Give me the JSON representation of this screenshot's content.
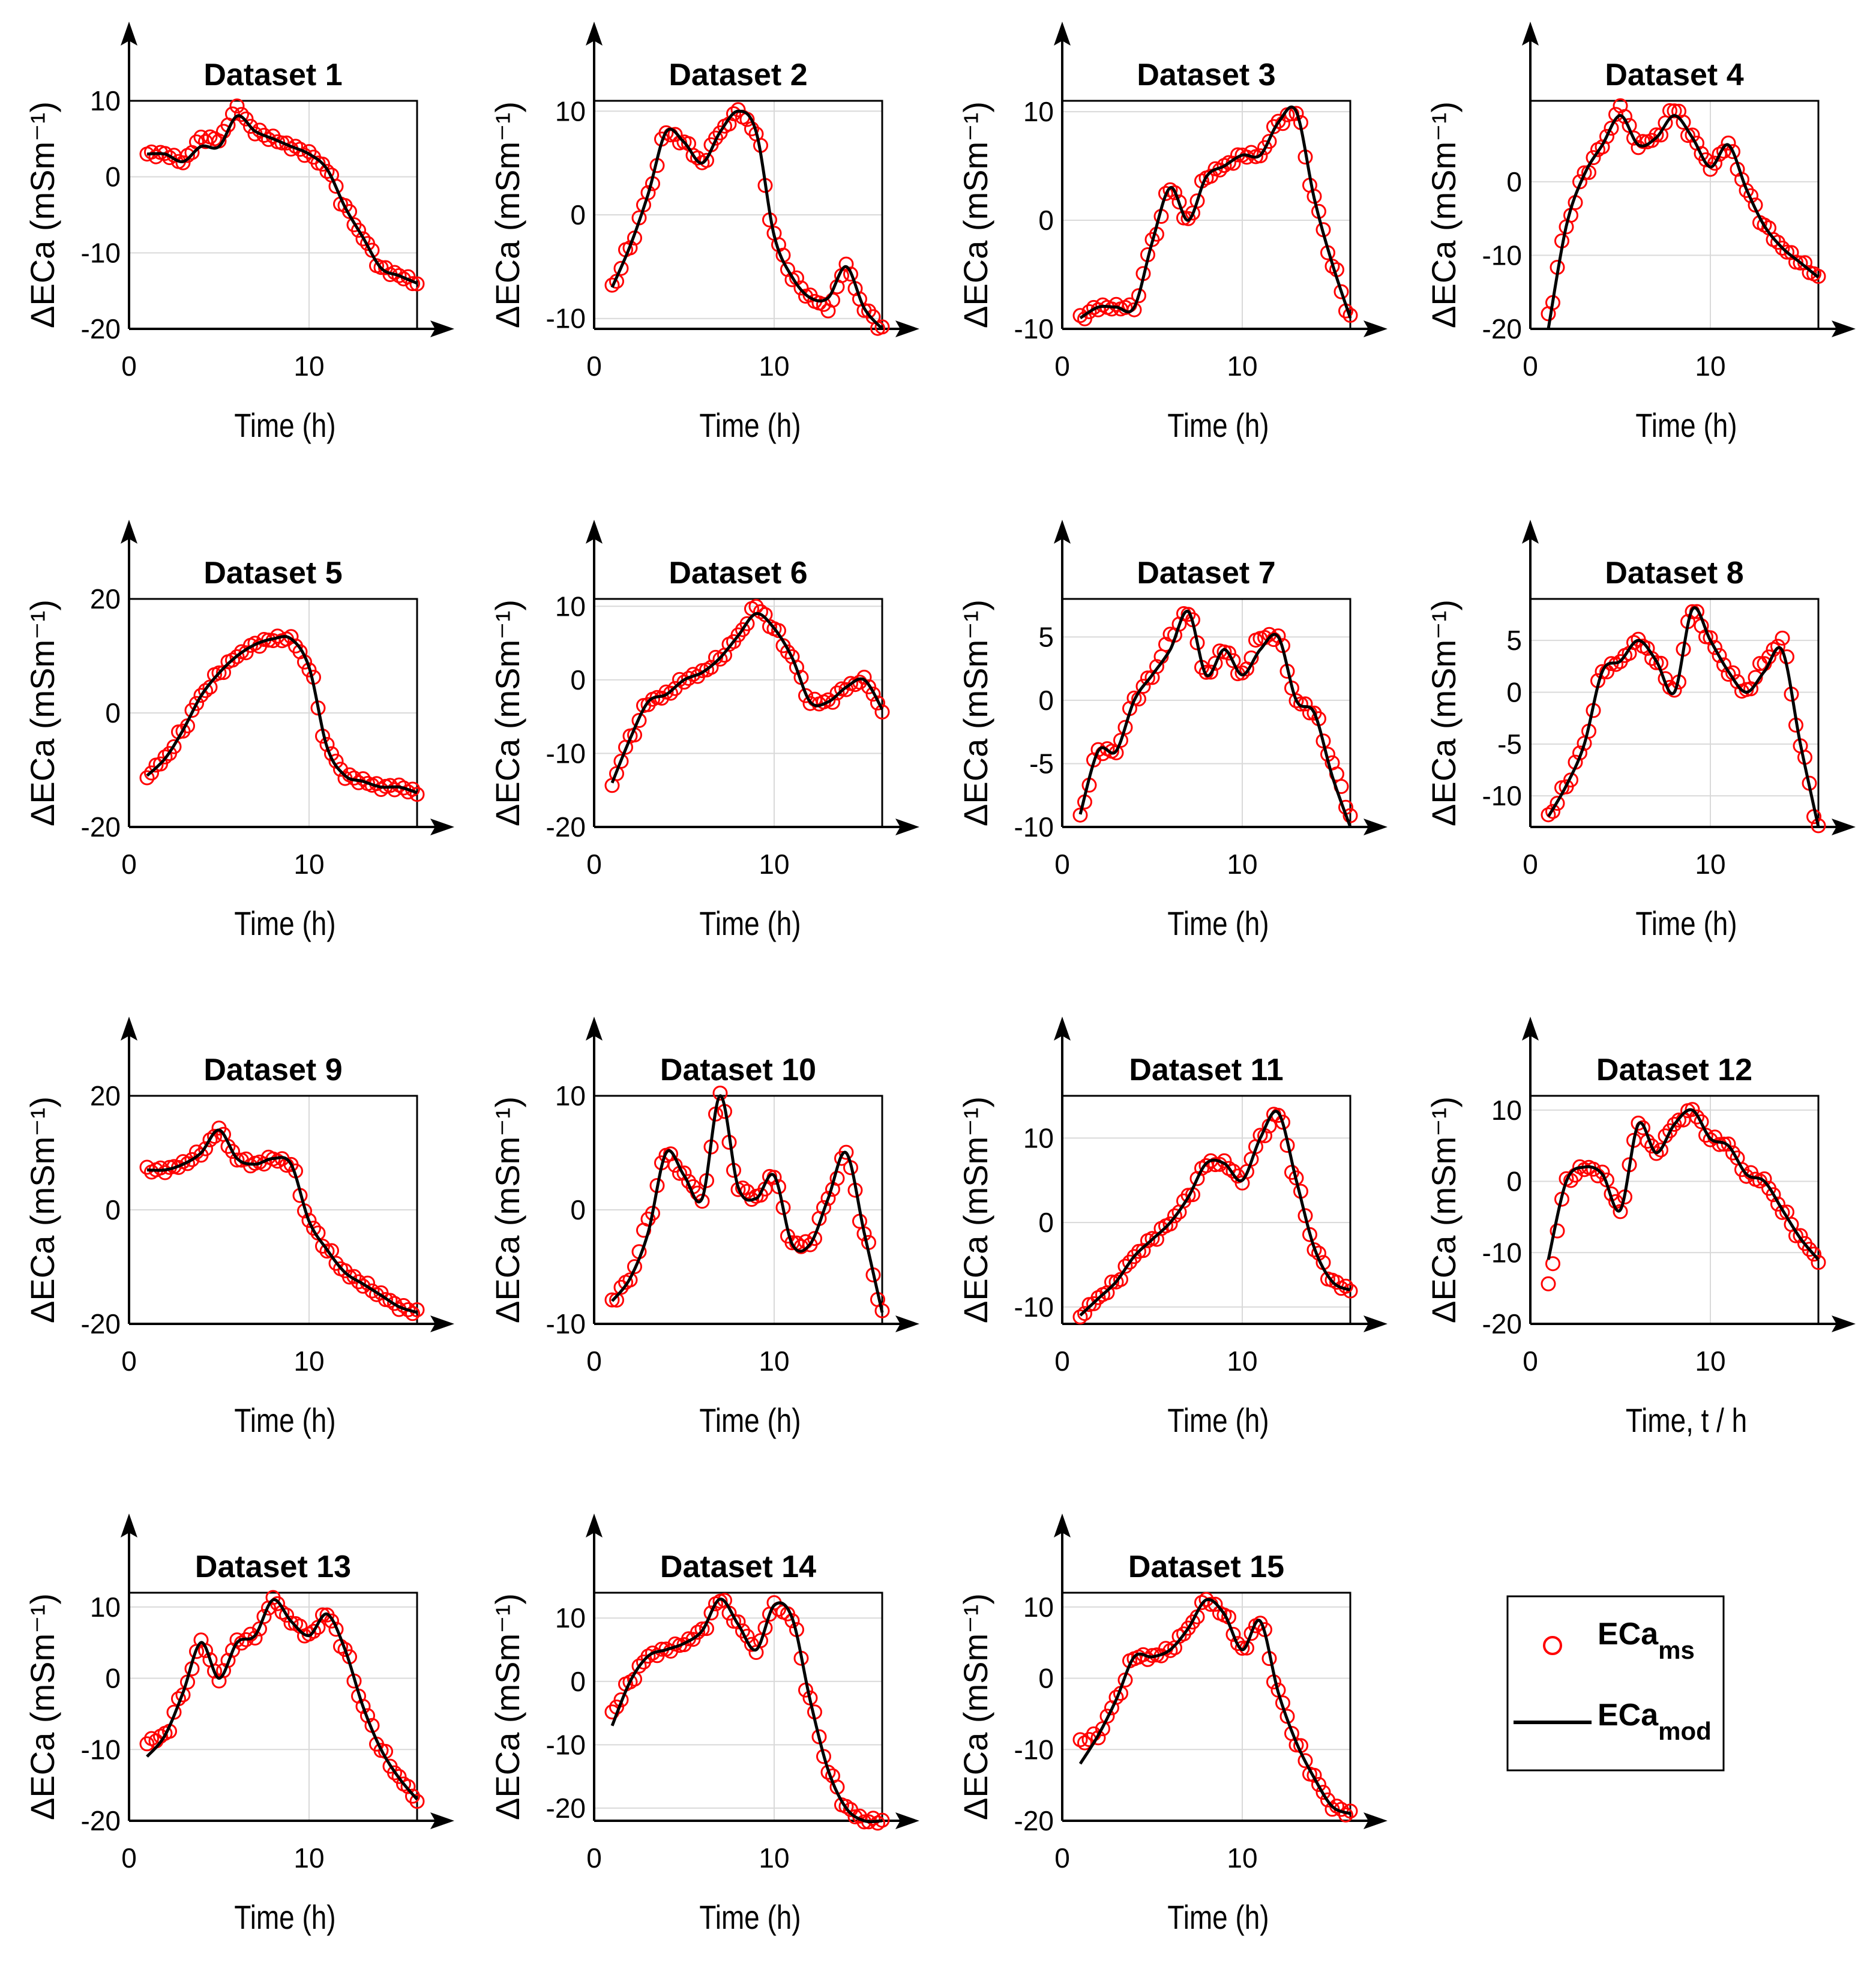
{
  "legend": {
    "measured": {
      "base": "ECa",
      "sub": "ms"
    },
    "modelled": {
      "base": "ECa",
      "sub": "mod"
    }
  },
  "colors": {
    "measured": "#ff0000",
    "modelled": "#000000",
    "grid": "#d9d9d9",
    "axis": "#000000"
  },
  "chart_data": [
    {
      "type": "line",
      "title": "Dataset 1",
      "xlabel": "Time (h)",
      "ylabel": "ΔECa (mSm⁻¹)",
      "xlim": [
        0,
        16
      ],
      "ylim": [
        -20,
        10
      ],
      "xticks": [
        0,
        10
      ],
      "yticks": [
        -20,
        -10,
        0,
        10
      ],
      "x": [
        1,
        2,
        3,
        4,
        5,
        6,
        7,
        8,
        9,
        10,
        11,
        12,
        13,
        14,
        15,
        16
      ],
      "measured": [
        3,
        3,
        2,
        5,
        5,
        9,
        6,
        5,
        4,
        3,
        1,
        -4,
        -8,
        -12,
        -13,
        -14
      ],
      "modelled": [
        3,
        3,
        2,
        4,
        4,
        8,
        6,
        5,
        4,
        3,
        1,
        -4,
        -8,
        -12,
        -13,
        -14
      ]
    },
    {
      "type": "line",
      "title": "Dataset 2",
      "xlabel": "Time (h)",
      "ylabel": "ΔECa (mSm⁻¹)",
      "xlim": [
        0,
        16
      ],
      "ylim": [
        -11,
        11
      ],
      "xticks": [
        0,
        10
      ],
      "yticks": [
        -10,
        0,
        10
      ],
      "x": [
        1,
        2,
        3,
        4,
        5,
        6,
        7,
        8,
        9,
        10,
        11,
        12,
        13,
        14,
        15,
        16
      ],
      "measured": [
        -7,
        -3,
        2,
        8,
        7,
        5,
        8,
        10,
        8,
        -2,
        -6,
        -8,
        -9,
        -5,
        -9,
        -11
      ],
      "modelled": [
        -7,
        -3,
        2,
        8,
        7,
        5,
        8,
        10,
        8,
        -2,
        -6,
        -8,
        -8,
        -5,
        -9,
        -11
      ]
    },
    {
      "type": "line",
      "title": "Dataset 3",
      "xlabel": "Time (h)",
      "ylabel": "ΔECa (mSm⁻¹)",
      "xlim": [
        0,
        16
      ],
      "ylim": [
        -10,
        11
      ],
      "xticks": [
        0,
        10
      ],
      "yticks": [
        -10,
        0,
        10
      ],
      "x": [
        1,
        2,
        3,
        4,
        5,
        6,
        7,
        8,
        9,
        10,
        11,
        12,
        13,
        14,
        15,
        16
      ],
      "measured": [
        -9,
        -8,
        -8,
        -8,
        -2,
        3,
        0,
        4,
        5,
        6,
        6,
        9,
        10,
        2,
        -4,
        -9
      ],
      "modelled": [
        -9,
        -8,
        -8,
        -8,
        -2,
        3,
        0,
        4,
        5,
        6,
        6,
        9,
        10,
        2,
        -4,
        -9
      ]
    },
    {
      "type": "line",
      "title": "Dataset 4",
      "xlabel": "Time (h)",
      "ylabel": "ΔECa (mSm⁻¹)",
      "xlim": [
        0,
        16
      ],
      "ylim": [
        -20,
        11
      ],
      "xticks": [
        0,
        10
      ],
      "yticks": [
        -20,
        -10,
        0
      ],
      "x": [
        1,
        2,
        3,
        4,
        5,
        6,
        7,
        8,
        9,
        10,
        11,
        12,
        13,
        14,
        15,
        16
      ],
      "measured": [
        -18,
        -6,
        1,
        5,
        10,
        5,
        6,
        10,
        6,
        2,
        5,
        -1,
        -6,
        -9,
        -11,
        -13
      ],
      "modelled": [
        -20,
        -6,
        1,
        5,
        9,
        5,
        6,
        9,
        6,
        2,
        5,
        -1,
        -6,
        -9,
        -11,
        -13
      ]
    },
    {
      "type": "line",
      "title": "Dataset 5",
      "xlabel": "Time (h)",
      "ylabel": "ΔECa (mSm⁻¹)",
      "xlim": [
        0,
        16
      ],
      "ylim": [
        -20,
        20
      ],
      "xticks": [
        0,
        10
      ],
      "yticks": [
        -20,
        0,
        20
      ],
      "x": [
        1,
        2,
        3,
        4,
        5,
        6,
        7,
        8,
        9,
        10,
        11,
        12,
        13,
        14,
        15,
        16
      ],
      "measured": [
        -11,
        -8,
        -3,
        3,
        7,
        10,
        12,
        13,
        13,
        8,
        -6,
        -11,
        -12,
        -13,
        -13,
        -14
      ],
      "modelled": [
        -11,
        -8,
        -3,
        3,
        7,
        10,
        12,
        13,
        13,
        8,
        -6,
        -11,
        -12,
        -13,
        -13,
        -14
      ]
    },
    {
      "type": "line",
      "title": "Dataset 6",
      "xlabel": "Time (h)",
      "ylabel": "ΔECa (mSm⁻¹)",
      "xlim": [
        0,
        16
      ],
      "ylim": [
        -20,
        11
      ],
      "xticks": [
        0,
        10
      ],
      "yticks": [
        -20,
        -10,
        0,
        10
      ],
      "x": [
        1,
        2,
        3,
        4,
        5,
        6,
        7,
        8,
        9,
        10,
        11,
        12,
        13,
        14,
        15,
        16
      ],
      "measured": [
        -14,
        -8,
        -3,
        -2,
        0,
        1,
        3,
        6,
        10,
        7,
        3,
        -3,
        -3,
        -1,
        0,
        -4
      ],
      "modelled": [
        -14,
        -8,
        -3,
        -2,
        0,
        1,
        3,
        6,
        9,
        7,
        3,
        -3,
        -3,
        -1,
        0,
        -4
      ]
    },
    {
      "type": "line",
      "title": "Dataset 7",
      "xlabel": "Time (h)",
      "ylabel": "ΔECa (mSm⁻¹)",
      "xlim": [
        0,
        16
      ],
      "ylim": [
        -10,
        8
      ],
      "xticks": [
        0,
        10
      ],
      "yticks": [
        -10,
        -5,
        0,
        5
      ],
      "x": [
        1,
        2,
        3,
        4,
        5,
        6,
        7,
        8,
        9,
        10,
        11,
        12,
        13,
        14,
        15,
        16
      ],
      "measured": [
        -9,
        -4,
        -4,
        0,
        2,
        5,
        7,
        2,
        4,
        2,
        5,
        5,
        0,
        -1,
        -5,
        -9
      ],
      "modelled": [
        -9,
        -4,
        -4,
        0,
        2,
        4,
        7,
        2,
        4,
        2,
        4,
        5,
        0,
        -1,
        -6,
        -10
      ]
    },
    {
      "type": "line",
      "title": "Dataset 8",
      "xlabel": "Time (h)",
      "ylabel": "ΔECa (mSm⁻¹)",
      "xlim": [
        0,
        16
      ],
      "ylim": [
        -13,
        9
      ],
      "xticks": [
        0,
        10
      ],
      "yticks": [
        -10,
        -5,
        0,
        5
      ],
      "x": [
        1,
        2,
        3,
        4,
        5,
        6,
        7,
        8,
        9,
        10,
        11,
        12,
        13,
        14,
        15,
        16
      ],
      "measured": [
        -12,
        -9,
        -5,
        2,
        3,
        5,
        3,
        0,
        8,
        5,
        2,
        0,
        3,
        5,
        -5,
        -13
      ],
      "modelled": [
        -12,
        -9,
        -5,
        2,
        3,
        5,
        3,
        0,
        8,
        5,
        2,
        0,
        2,
        4,
        -5,
        -13
      ]
    },
    {
      "type": "line",
      "title": "Dataset 9",
      "xlabel": "Time (h)",
      "ylabel": "ΔECa (mSm⁻¹)",
      "xlim": [
        0,
        16
      ],
      "ylim": [
        -20,
        20
      ],
      "xticks": [
        0,
        10
      ],
      "yticks": [
        -20,
        0,
        20
      ],
      "x": [
        1,
        2,
        3,
        4,
        5,
        6,
        7,
        8,
        9,
        10,
        11,
        12,
        13,
        14,
        15,
        16
      ],
      "measured": [
        7,
        7,
        8,
        10,
        14,
        9,
        8,
        9,
        8,
        -2,
        -7,
        -11,
        -13,
        -15,
        -17,
        -18
      ],
      "modelled": [
        7,
        7,
        8,
        10,
        14,
        9,
        8,
        9,
        8,
        -2,
        -7,
        -11,
        -13,
        -15,
        -17,
        -18
      ]
    },
    {
      "type": "line",
      "title": "Dataset 10",
      "xlabel": "Time (h)",
      "ylabel": "ΔECa (mSm⁻¹)",
      "xlim": [
        0,
        16
      ],
      "ylim": [
        -10,
        10
      ],
      "xticks": [
        0,
        10
      ],
      "yticks": [
        -10,
        0,
        10
      ],
      "x": [
        1,
        2,
        3,
        4,
        5,
        6,
        7,
        8,
        9,
        10,
        11,
        12,
        13,
        14,
        15,
        16
      ],
      "measured": [
        -8,
        -6,
        -1,
        5,
        3,
        1,
        10,
        2,
        1,
        3,
        -3,
        -3,
        1,
        5,
        -2,
        -9
      ],
      "modelled": [
        -8,
        -6,
        -2,
        5,
        3,
        1,
        10,
        2,
        1,
        3,
        -3,
        -3,
        1,
        5,
        -2,
        -9
      ]
    },
    {
      "type": "line",
      "title": "Dataset 11",
      "xlabel": "Time (h)",
      "ylabel": "ΔECa (mSm⁻¹)",
      "xlim": [
        0,
        16
      ],
      "ylim": [
        -12,
        15
      ],
      "xticks": [
        0,
        10
      ],
      "yticks": [
        -10,
        0,
        10
      ],
      "x": [
        1,
        2,
        3,
        4,
        5,
        6,
        7,
        8,
        9,
        10,
        11,
        12,
        13,
        14,
        15,
        16
      ],
      "measured": [
        -11,
        -9,
        -7,
        -4,
        -2,
        0,
        3,
        7,
        7,
        5,
        10,
        13,
        5,
        -3,
        -7,
        -8
      ],
      "modelled": [
        -11,
        -9,
        -7,
        -4,
        -2,
        0,
        3,
        7,
        7,
        5,
        10,
        13,
        5,
        -3,
        -7,
        -8
      ]
    },
    {
      "type": "line",
      "title": "Dataset 12",
      "xlabel": "Time, t / h",
      "ylabel": "ΔECa (mSm⁻¹)",
      "xlim": [
        0,
        16
      ],
      "ylim": [
        -20,
        12
      ],
      "xticks": [
        0,
        10
      ],
      "yticks": [
        -20,
        -10,
        0,
        10
      ],
      "x": [
        1,
        2,
        3,
        4,
        5,
        6,
        7,
        8,
        9,
        10,
        11,
        12,
        13,
        14,
        15,
        16
      ],
      "measured": [
        -14,
        0,
        2,
        1,
        -4,
        8,
        4,
        8,
        10,
        6,
        5,
        1,
        0,
        -4,
        -8,
        -11
      ],
      "modelled": [
        -11,
        0,
        2,
        1,
        -4,
        8,
        4,
        8,
        10,
        6,
        5,
        1,
        0,
        -4,
        -8,
        -11
      ]
    },
    {
      "type": "line",
      "title": "Dataset 13",
      "xlabel": "Time (h)",
      "ylabel": "ΔECa (mSm⁻¹)",
      "xlim": [
        0,
        16
      ],
      "ylim": [
        -20,
        12
      ],
      "xticks": [
        0,
        10
      ],
      "yticks": [
        -20,
        -10,
        0,
        10
      ],
      "x": [
        1,
        2,
        3,
        4,
        5,
        6,
        7,
        8,
        9,
        10,
        11,
        12,
        13,
        14,
        15,
        16
      ],
      "measured": [
        -9,
        -8,
        -2,
        5,
        0,
        5,
        6,
        11,
        8,
        6,
        9,
        4,
        -4,
        -10,
        -14,
        -17
      ],
      "modelled": [
        -11,
        -8,
        -2,
        5,
        0,
        5,
        6,
        11,
        8,
        6,
        9,
        4,
        -4,
        -10,
        -14,
        -17
      ]
    },
    {
      "type": "line",
      "title": "Dataset 14",
      "xlabel": "Time (h)",
      "ylabel": "ΔECa (mSm⁻¹)",
      "xlim": [
        0,
        16
      ],
      "ylim": [
        -22,
        14
      ],
      "xticks": [
        0,
        10
      ],
      "yticks": [
        -20,
        -10,
        0,
        10
      ],
      "x": [
        1,
        2,
        3,
        4,
        5,
        6,
        7,
        8,
        9,
        10,
        11,
        12,
        13,
        14,
        15,
        16
      ],
      "measured": [
        -5,
        0,
        4,
        5,
        6,
        8,
        13,
        9,
        5,
        12,
        10,
        -3,
        -14,
        -20,
        -22,
        -22
      ],
      "modelled": [
        -7,
        0,
        4,
        5,
        6,
        8,
        13,
        9,
        5,
        12,
        10,
        -3,
        -14,
        -20,
        -22,
        -22
      ]
    },
    {
      "type": "line",
      "title": "Dataset 15",
      "xlabel": "Time (h)",
      "ylabel": "ΔECa (mSm⁻¹)",
      "xlim": [
        0,
        16
      ],
      "ylim": [
        -20,
        12
      ],
      "xticks": [
        0,
        10
      ],
      "yticks": [
        -20,
        -10,
        0,
        10
      ],
      "x": [
        1,
        2,
        3,
        4,
        5,
        6,
        7,
        8,
        9,
        10,
        11,
        12,
        13,
        14,
        15,
        16
      ],
      "measured": [
        -9,
        -8,
        -3,
        3,
        3,
        4,
        7,
        11,
        9,
        4,
        8,
        -2,
        -9,
        -14,
        -18,
        -19
      ],
      "modelled": [
        -12,
        -8,
        -3,
        3,
        3,
        4,
        7,
        11,
        9,
        4,
        8,
        -2,
        -9,
        -14,
        -18,
        -19
      ]
    }
  ]
}
